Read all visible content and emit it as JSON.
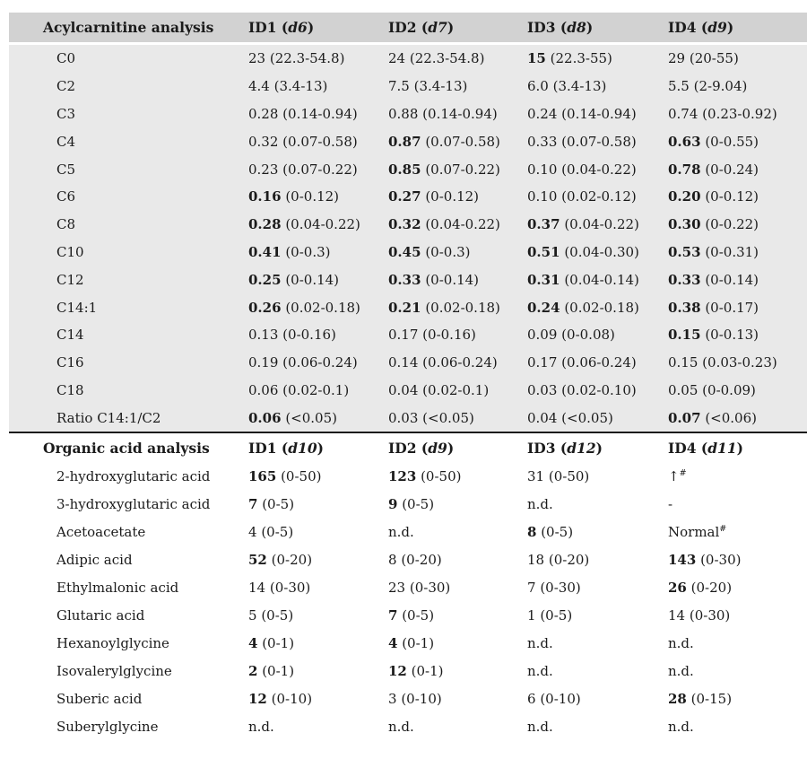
{
  "table": {
    "colors": {
      "header_bg": "#d2d2d2",
      "section1_bg": "#e9e9e9",
      "section2_bg": "#ffffff",
      "divider": "#1c1c1c",
      "text": "#1b1b1b"
    },
    "sections": [
      {
        "key": "acylcarnitine",
        "title": "Acylcarnitine analysis",
        "columns": [
          {
            "id": "ID1",
            "d": "d6"
          },
          {
            "id": "ID2",
            "d": "d7"
          },
          {
            "id": "ID3",
            "d": "d8"
          },
          {
            "id": "ID4",
            "d": "d9"
          }
        ],
        "rows": [
          {
            "label": "C0",
            "cells": [
              {
                "v": "23",
                "r": "(22.3-54.8)",
                "b": false
              },
              {
                "v": "24",
                "r": "(22.3-54.8)",
                "b": false
              },
              {
                "v": "15",
                "r": "(22.3-55)",
                "b": true
              },
              {
                "v": "29",
                "r": "(20-55)",
                "b": false
              }
            ]
          },
          {
            "label": "C2",
            "cells": [
              {
                "v": "4.4",
                "r": "(3.4-13)",
                "b": false
              },
              {
                "v": "7.5",
                "r": "(3.4-13)",
                "b": false
              },
              {
                "v": "6.0",
                "r": "(3.4-13)",
                "b": false
              },
              {
                "v": "5.5",
                "r": "(2-9.04)",
                "b": false
              }
            ]
          },
          {
            "label": "C3",
            "cells": [
              {
                "v": "0.28",
                "r": "(0.14-0.94)",
                "b": false
              },
              {
                "v": "0.88",
                "r": "(0.14-0.94)",
                "b": false
              },
              {
                "v": "0.24",
                "r": "(0.14-0.94)",
                "b": false
              },
              {
                "v": "0.74",
                "r": "(0.23-0.92)",
                "b": false
              }
            ]
          },
          {
            "label": "C4",
            "cells": [
              {
                "v": "0.32",
                "r": "(0.07-0.58)",
                "b": false
              },
              {
                "v": "0.87",
                "r": "(0.07-0.58)",
                "b": true
              },
              {
                "v": "0.33",
                "r": "(0.07-0.58)",
                "b": false
              },
              {
                "v": "0.63",
                "r": "(0-0.55)",
                "b": true
              }
            ]
          },
          {
            "label": "C5",
            "cells": [
              {
                "v": "0.23",
                "r": "(0.07-0.22)",
                "b": false
              },
              {
                "v": "0.85",
                "r": "(0.07-0.22)",
                "b": true
              },
              {
                "v": "0.10",
                "r": "(0.04-0.22)",
                "b": false
              },
              {
                "v": "0.78",
                "r": "(0-0.24)",
                "b": true
              }
            ]
          },
          {
            "label": "C6",
            "cells": [
              {
                "v": "0.16",
                "r": "(0-0.12)",
                "b": true
              },
              {
                "v": "0.27",
                "r": "(0-0.12)",
                "b": true
              },
              {
                "v": "0.10",
                "r": "(0.02-0.12)",
                "b": false
              },
              {
                "v": "0.20",
                "r": "(0-0.12)",
                "b": true
              }
            ]
          },
          {
            "label": "C8",
            "cells": [
              {
                "v": "0.28",
                "r": "(0.04-0.22)",
                "b": true
              },
              {
                "v": "0.32",
                "r": "(0.04-0.22)",
                "b": true
              },
              {
                "v": "0.37",
                "r": "(0.04-0.22)",
                "b": true
              },
              {
                "v": "0.30",
                "r": "(0-0.22)",
                "b": true
              }
            ]
          },
          {
            "label": "C10",
            "cells": [
              {
                "v": "0.41",
                "r": "(0-0.3)",
                "b": true
              },
              {
                "v": "0.45",
                "r": "(0-0.3)",
                "b": true
              },
              {
                "v": "0.51",
                "r": "(0.04-0.30)",
                "b": true
              },
              {
                "v": "0.53",
                "r": "(0-0.31)",
                "b": true
              }
            ]
          },
          {
            "label": "C12",
            "cells": [
              {
                "v": "0.25",
                "r": "(0-0.14)",
                "b": true
              },
              {
                "v": "0.33",
                "r": "(0-0.14)",
                "b": true
              },
              {
                "v": "0.31",
                "r": "(0.04-0.14)",
                "b": true
              },
              {
                "v": "0.33",
                "r": "(0-0.14)",
                "b": true
              }
            ]
          },
          {
            "label": "C14:1",
            "cells": [
              {
                "v": "0.26",
                "r": "(0.02-0.18)",
                "b": true
              },
              {
                "v": "0.21",
                "r": "(0.02-0.18)",
                "b": true
              },
              {
                "v": "0.24",
                "r": "(0.02-0.18)",
                "b": true
              },
              {
                "v": "0.38",
                "r": "(0-0.17)",
                "b": true
              }
            ]
          },
          {
            "label": "C14",
            "cells": [
              {
                "v": "0.13",
                "r": "(0-0.16)",
                "b": false
              },
              {
                "v": "0.17",
                "r": "(0-0.16)",
                "b": false
              },
              {
                "v": "0.09",
                "r": "(0-0.08)",
                "b": false
              },
              {
                "v": "0.15",
                "r": "(0-0.13)",
                "b": true
              }
            ]
          },
          {
            "label": "C16",
            "cells": [
              {
                "v": "0.19",
                "r": "(0.06-0.24)",
                "b": false
              },
              {
                "v": "0.14",
                "r": "(0.06-0.24)",
                "b": false
              },
              {
                "v": "0.17",
                "r": "(0.06-0.24)",
                "b": false
              },
              {
                "v": "0.15",
                "r": "(0.03-0.23)",
                "b": false
              }
            ]
          },
          {
            "label": "C18",
            "cells": [
              {
                "v": "0.06",
                "r": "(0.02-0.1)",
                "b": false
              },
              {
                "v": "0.04",
                "r": "(0.02-0.1)",
                "b": false
              },
              {
                "v": "0.03",
                "r": "(0.02-0.10)",
                "b": false
              },
              {
                "v": "0.05",
                "r": "(0-0.09)",
                "b": false
              }
            ]
          },
          {
            "label": "Ratio C14:1/C2",
            "cells": [
              {
                "v": "0.06",
                "r": "(<0.05)",
                "b": true
              },
              {
                "v": "0.03",
                "r": "(<0.05)",
                "b": false
              },
              {
                "v": "0.04",
                "r": "(<0.05)",
                "b": false
              },
              {
                "v": "0.07",
                "r": "(<0.06)",
                "b": true
              }
            ]
          }
        ]
      },
      {
        "key": "organic-acid",
        "title": "Organic acid analysis",
        "columns": [
          {
            "id": "ID1",
            "d": "d10"
          },
          {
            "id": "ID2",
            "d": "d9"
          },
          {
            "id": "ID3",
            "d": "d12"
          },
          {
            "id": "ID4",
            "d": "d11"
          }
        ],
        "rows": [
          {
            "label": "2-hydroxyglutaric acid",
            "cells": [
              {
                "v": "165",
                "r": "(0-50)",
                "b": true
              },
              {
                "v": "123",
                "r": "(0-50)",
                "b": true
              },
              {
                "v": "31",
                "r": "(0-50)",
                "b": false
              },
              {
                "v": "↑",
                "sup": "#",
                "b": false
              }
            ]
          },
          {
            "label": "3-hydroxyglutaric acid",
            "cells": [
              {
                "v": "7",
                "r": "(0-5)",
                "b": true
              },
              {
                "v": "9",
                "r": "(0-5)",
                "b": true
              },
              {
                "v": "n.d.",
                "b": false
              },
              {
                "v": "-",
                "b": false
              }
            ]
          },
          {
            "label": "Acetoacetate",
            "cells": [
              {
                "v": "4",
                "r": "(0-5)",
                "b": false
              },
              {
                "v": "n.d.",
                "b": false
              },
              {
                "v": "8",
                "r": "(0-5)",
                "b": true
              },
              {
                "v": "Normal",
                "sup": "#",
                "b": false
              }
            ]
          },
          {
            "label": "Adipic acid",
            "cells": [
              {
                "v": "52",
                "r": "(0-20)",
                "b": true
              },
              {
                "v": "8",
                "r": "(0-20)",
                "b": false
              },
              {
                "v": "18",
                "r": "(0-20)",
                "b": false
              },
              {
                "v": "143",
                "r": "(0-30)",
                "b": true
              }
            ]
          },
          {
            "label": "Ethylmalonic acid",
            "cells": [
              {
                "v": "14",
                "r": "(0-30)",
                "b": false
              },
              {
                "v": "23",
                "r": "(0-30)",
                "b": false
              },
              {
                "v": "7",
                "r": "(0-30)",
                "b": false
              },
              {
                "v": "26",
                "r": "(0-20)",
                "b": true
              }
            ]
          },
          {
            "label": "Glutaric acid",
            "cells": [
              {
                "v": "5",
                "r": "(0-5)",
                "b": false
              },
              {
                "v": "7",
                "r": "(0-5)",
                "b": true
              },
              {
                "v": "1",
                "r": "(0-5)",
                "b": false
              },
              {
                "v": "14",
                "r": "(0-30)",
                "b": false
              }
            ]
          },
          {
            "label": "Hexanoylglycine",
            "cells": [
              {
                "v": "4",
                "r": "(0-1)",
                "b": true
              },
              {
                "v": "4",
                "r": "(0-1)",
                "b": true
              },
              {
                "v": "n.d.",
                "b": false
              },
              {
                "v": "n.d.",
                "b": false
              }
            ]
          },
          {
            "label": "Isovalerylglycine",
            "cells": [
              {
                "v": "2",
                "r": "(0-1)",
                "b": true
              },
              {
                "v": "12",
                "r": "(0-1)",
                "b": true
              },
              {
                "v": "n.d.",
                "b": false
              },
              {
                "v": "n.d.",
                "b": false
              }
            ]
          },
          {
            "label": "Suberic acid",
            "cells": [
              {
                "v": "12",
                "r": "(0-10)",
                "b": true
              },
              {
                "v": "3",
                "r": "(0-10)",
                "b": false
              },
              {
                "v": "6",
                "r": "(0-10)",
                "b": false
              },
              {
                "v": "28",
                "r": "(0-15)",
                "b": true
              }
            ]
          },
          {
            "label": "Suberylglycine",
            "cells": [
              {
                "v": "n.d.",
                "b": false
              },
              {
                "v": "n.d.",
                "b": false
              },
              {
                "v": "n.d.",
                "b": false
              },
              {
                "v": "n.d.",
                "b": false
              }
            ]
          }
        ]
      }
    ]
  }
}
